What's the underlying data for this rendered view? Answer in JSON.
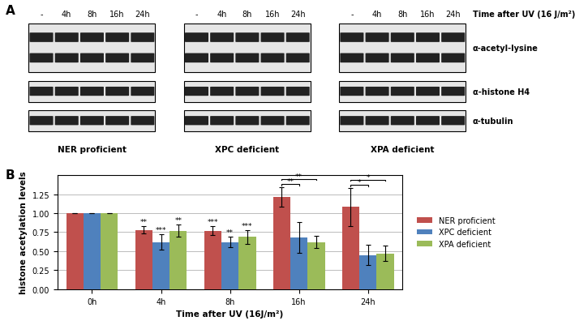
{
  "panel_a": {
    "label": "A",
    "time_title": "Time after UV (16 J/m²)",
    "lanes": [
      "-",
      "4h",
      "8h",
      "16h",
      "24h"
    ],
    "antibodies": [
      "α-acetyl-lysine",
      "α-histone H4",
      "α-tubulin"
    ],
    "cell_lines": [
      "NER proficient",
      "XPC deficient",
      "XPA deficient"
    ]
  },
  "panel_b_label": "B",
  "chart_data": {
    "type": "bar",
    "x_label": "Time after UV (16J/m²)",
    "y_label": "histone acetylation levels",
    "categories": [
      "0h",
      "4h",
      "8h",
      "16h",
      "24h"
    ],
    "series": [
      {
        "name": "NER proficient",
        "color": "#C0504D",
        "values": [
          1.0,
          0.78,
          0.77,
          1.21,
          1.08
        ],
        "errors": [
          0,
          0.05,
          0.06,
          0.13,
          0.25
        ],
        "significance": [
          null,
          "**",
          "***",
          null,
          null
        ]
      },
      {
        "name": "XPC deficient",
        "color": "#4F81BD",
        "values": [
          1.0,
          0.62,
          0.62,
          0.68,
          0.45
        ],
        "errors": [
          0,
          0.1,
          0.07,
          0.2,
          0.13
        ],
        "significance": [
          null,
          "***",
          "**",
          null,
          null
        ]
      },
      {
        "name": "XPA deficient",
        "color": "#9BBB59",
        "values": [
          1.0,
          0.77,
          0.69,
          0.62,
          0.47
        ],
        "errors": [
          0,
          0.08,
          0.09,
          0.08,
          0.1
        ],
        "significance": [
          null,
          "**",
          "***",
          null,
          null
        ]
      }
    ],
    "comparisons": [
      {
        "category": "16h",
        "from": "NER proficient",
        "to": "XPC deficient",
        "label": "**"
      },
      {
        "category": "16h",
        "from": "NER proficient",
        "to": "XPA deficient",
        "label": "**"
      },
      {
        "category": "24h",
        "from": "NER proficient",
        "to": "XPC deficient",
        "label": "*"
      },
      {
        "category": "24h",
        "from": "NER proficient",
        "to": "XPA deficient",
        "label": "*"
      }
    ],
    "ylim": [
      0,
      1.5
    ],
    "yticks": [
      {
        "value": 0,
        "label": "0.00"
      },
      {
        "value": 0.25,
        "label": "0.25"
      },
      {
        "value": 0.5,
        "label": "0.50"
      },
      {
        "value": 0.75,
        "label": "0.75"
      },
      {
        "value": 1.0,
        "label": "1.00"
      },
      {
        "value": 1.25,
        "label": "1.25"
      }
    ],
    "grid": true,
    "legend": "right"
  }
}
